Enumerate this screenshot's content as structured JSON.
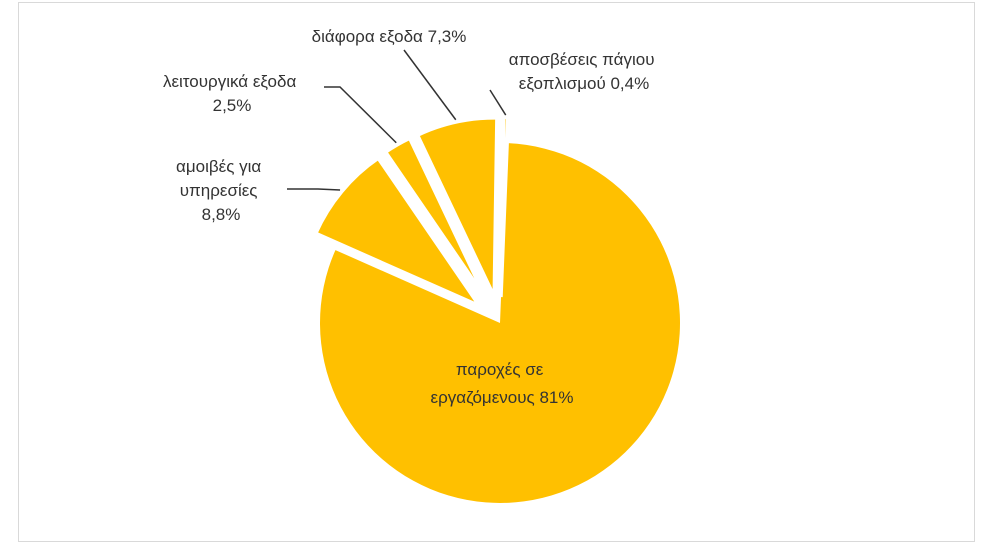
{
  "chart_data": {
    "type": "pie",
    "title": "",
    "legend": "none",
    "colors": {
      "slice": "#FFC000",
      "label": "#333333",
      "leader": "#333333",
      "frame": "#d9d9d9"
    },
    "slices": [
      {
        "id": "paroxes",
        "label": [
          "παροχές σε",
          "εργαζόμενους  81%"
        ],
        "value": 81,
        "exploded": false,
        "label_inside": true
      },
      {
        "id": "amoives",
        "label": [
          "αμοιβές για",
          "υπηρεσίες",
          "8,8%"
        ],
        "value": 8.8,
        "exploded": true,
        "label_inside": false
      },
      {
        "id": "leitourgika",
        "label": [
          "λειτουργικά εξοδα",
          "2,5%"
        ],
        "value": 2.5,
        "exploded": true,
        "label_inside": false
      },
      {
        "id": "diafora",
        "label": [
          "διάφορα εξοδα 7,3%"
        ],
        "value": 7.3,
        "exploded": true,
        "label_inside": false
      },
      {
        "id": "aposveseis",
        "label": [
          "αποσβέσεις πάγιου",
          "εξοπλισμού  0,4%"
        ],
        "value": 0.4,
        "exploded": true,
        "label_inside": false
      }
    ]
  }
}
